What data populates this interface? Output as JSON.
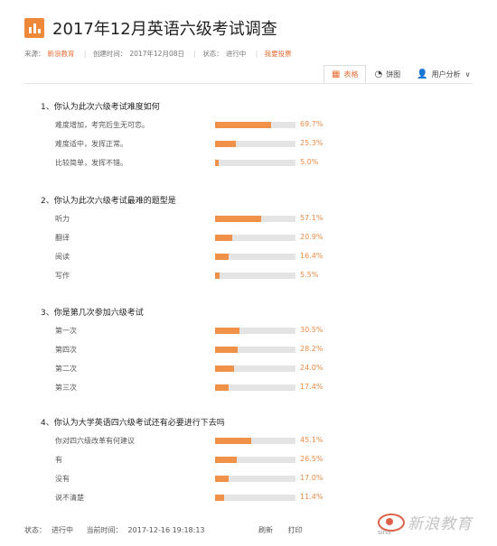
{
  "header": {
    "title": "2017年12月英语六级考试调查"
  },
  "meta": {
    "source_label": "来源：",
    "source_value": "新浪教育",
    "created_label": "创建时间：",
    "created_value": "2017年12月08日",
    "status_label": "状态：",
    "status_value": "进行中",
    "vote_link": "我要投票"
  },
  "toolbar": {
    "table_label": "表格",
    "pie_label": "饼图",
    "user_label": "用户分析"
  },
  "colors": {
    "accent": "#f0914a",
    "track": "#e4e4e4",
    "pct_text": "#ef8a44"
  },
  "questions": [
    {
      "title": "1、你认为此次六级考试难度如何",
      "options": [
        {
          "label": "难度增加，考完后生无可恋。",
          "value": 69.7,
          "pct": "69.7%"
        },
        {
          "label": "难度适中，发挥正常。",
          "value": 25.3,
          "pct": "25.3%"
        },
        {
          "label": "比较简单，发挥不错。",
          "value": 5.0,
          "pct": "5.0%"
        }
      ]
    },
    {
      "title": "2、你认为此次六级考试最难的题型是",
      "options": [
        {
          "label": "听力",
          "value": 57.1,
          "pct": "57.1%"
        },
        {
          "label": "翻译",
          "value": 20.9,
          "pct": "20.9%"
        },
        {
          "label": "阅读",
          "value": 16.4,
          "pct": "16.4%"
        },
        {
          "label": "写作",
          "value": 5.5,
          "pct": "5.5%"
        }
      ]
    },
    {
      "title": "3、你是第几次参加六级考试",
      "options": [
        {
          "label": "第一次",
          "value": 30.5,
          "pct": "30.5%"
        },
        {
          "label": "第四次",
          "value": 28.2,
          "pct": "28.2%"
        },
        {
          "label": "第二次",
          "value": 24.0,
          "pct": "24.0%"
        },
        {
          "label": "第三次",
          "value": 17.4,
          "pct": "17.4%"
        }
      ]
    },
    {
      "title": "4、你认为大学英语四六级考试还有必要进行下去吗",
      "options": [
        {
          "label": "你对四六级改革有何建议",
          "value": 45.1,
          "pct": "45.1%"
        },
        {
          "label": "有",
          "value": 26.5,
          "pct": "26.5%"
        },
        {
          "label": "没有",
          "value": 17.0,
          "pct": "17.0%"
        },
        {
          "label": "说不清楚",
          "value": 11.4,
          "pct": "11.4%"
        }
      ]
    }
  ],
  "footer": {
    "status_label": "状态：",
    "status_value": "进行中",
    "time_label": "当前时间：",
    "time_value": "2017-12-16 19:18:13",
    "refresh_label": "刷新",
    "print_label": "打印"
  },
  "watermark": {
    "text": "新浪教育",
    "sub": "sina"
  }
}
